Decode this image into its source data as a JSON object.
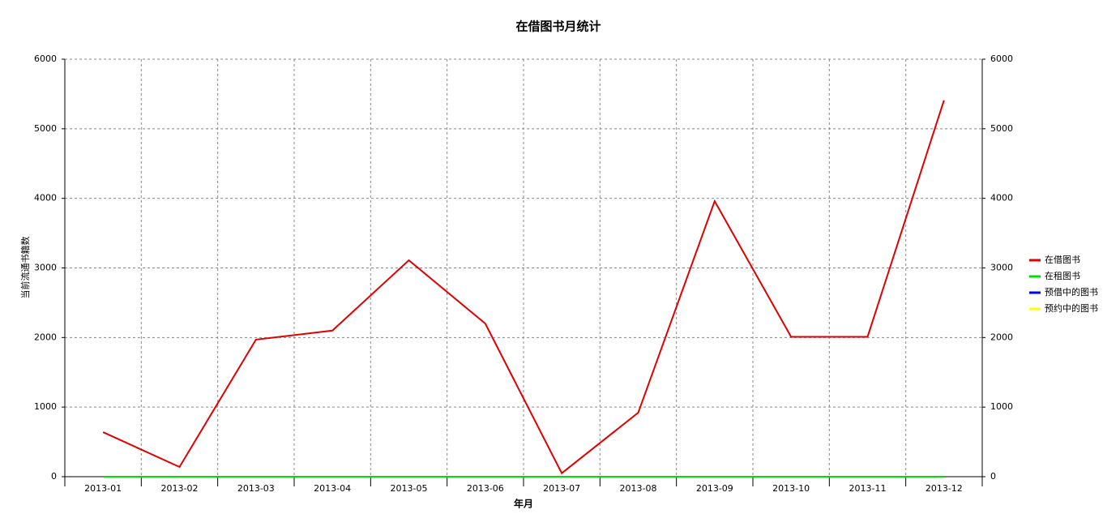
{
  "chart_data": {
    "type": "line",
    "title": "在借图书月统计",
    "x_label": "年月",
    "y_label": "当前流通书籍数",
    "categories": [
      "2013-01",
      "2013-02",
      "2013-03",
      "2013-04",
      "2013-05",
      "2013-06",
      "2013-07",
      "2013-08",
      "2013-09",
      "2013-10",
      "2013-11",
      "2013-12"
    ],
    "series": [
      {
        "name": "在借图书",
        "color": "#e00000",
        "values": [
          640,
          140,
          1970,
          2100,
          3110,
          2200,
          50,
          920,
          3960,
          2010,
          2010,
          5410
        ]
      },
      {
        "name": "在租图书",
        "color": "#00e000",
        "values": [
          0,
          0,
          0,
          0,
          0,
          0,
          0,
          0,
          0,
          0,
          0,
          0
        ]
      },
      {
        "name": "预借中的图书",
        "color": "#0000ff",
        "values": [
          0,
          0,
          0,
          0,
          0,
          0,
          0,
          0,
          0,
          0,
          0,
          0
        ]
      },
      {
        "name": "预约中的图书",
        "color": "#ffff00",
        "values": [
          0,
          0,
          0,
          0,
          0,
          0,
          0,
          0,
          0,
          0,
          0,
          0
        ]
      }
    ],
    "ylim": [
      0,
      6000
    ],
    "yticks": [
      0,
      1000,
      2000,
      3000,
      4000,
      5000,
      6000
    ],
    "y2lim": [
      0,
      6000
    ],
    "y2ticks": [
      0,
      1000,
      2000,
      3000,
      4000,
      5000,
      6000
    ],
    "grid": true,
    "legend": "right"
  }
}
